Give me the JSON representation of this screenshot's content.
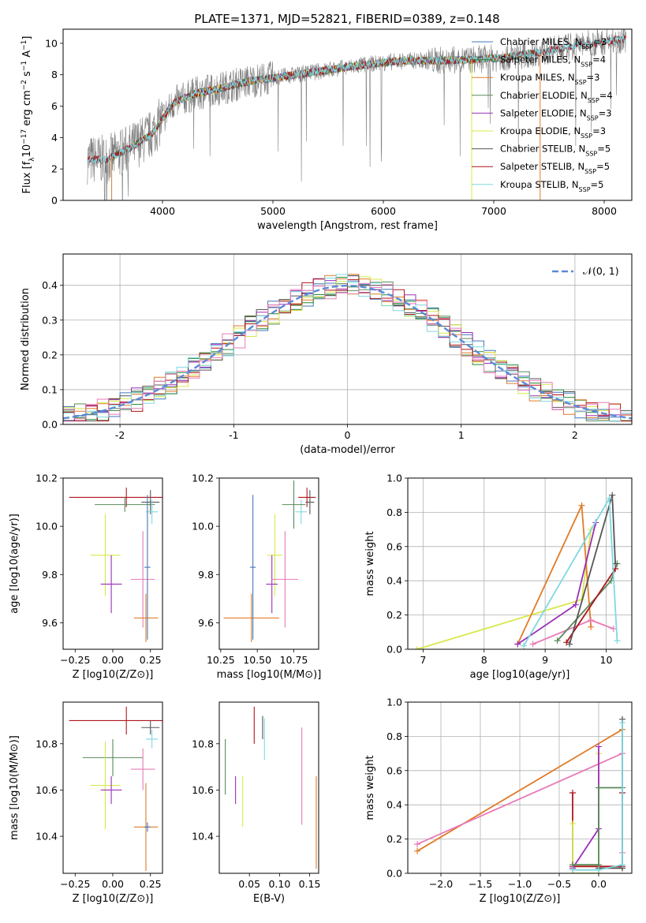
{
  "title": "PLATE=1371, MJD=52821, FIBERID=0389, z=0.148",
  "colors": {
    "chabrier_miles": "#4477bb",
    "salpeter_miles": "#228833",
    "kroupa_miles": "#e07b28",
    "chabrier_elodie": "#5a8a5a",
    "salpeter_elodie": "#9b30b8",
    "kroupa_elodie": "#d8e84a",
    "chabrier_stelib": "#555555",
    "salpeter_stelib": "#b0151b",
    "kroupa_stelib": "#7fd8e0",
    "kroupa_extra": "#e87ab8",
    "normal_curve": "#5a8ad8",
    "data": "#808080"
  },
  "chart_data": [
    {
      "id": "spectrum",
      "type": "line",
      "title": "PLATE=1371, MJD=52821, FIBERID=0389, z=0.148",
      "xlabel": "wavelength [Angstrom, rest frame]",
      "ylabel": "Flux [f_λ10^-17 erg cm^-2 s^-1 A^-1]",
      "xlim": [
        3100,
        8250
      ],
      "ylim": [
        0,
        10.9
      ],
      "xticks": [
        4000,
        5000,
        6000,
        7000,
        8000
      ],
      "yticks": [
        0,
        2,
        4,
        6,
        8,
        10
      ],
      "legend": [
        "Chabrier MILES, N_SSP=3",
        "Salpeter MILES, N_SSP=4",
        "Kroupa MILES, N_SSP=3",
        "Chabrier ELODIE, N_SSP=4",
        "Salpeter ELODIE, N_SSP=3",
        "Kroupa ELODIE, N_SSP=3",
        "Chabrier STELIB, N_SSP=5",
        "Salpeter STELIB, N_SSP=5",
        "Kroupa STELIB, N_SSP=5"
      ],
      "legend_placement": "top-right",
      "continuum": {
        "x": [
          3320,
          3500,
          3700,
          3900,
          4000,
          4100,
          4300,
          4500,
          4800,
          5000,
          5300,
          5600,
          5900,
          6200,
          6500,
          6800,
          7100,
          7400,
          7700,
          8000,
          8200
        ],
        "y": [
          2.6,
          2.6,
          3.3,
          4.2,
          5.2,
          6.2,
          6.8,
          7.1,
          7.6,
          7.8,
          8.1,
          8.4,
          8.7,
          8.9,
          8.9,
          8.95,
          9.1,
          9.4,
          9.8,
          10.1,
          10.3
        ]
      }
    },
    {
      "id": "residuals",
      "type": "line",
      "xlabel": "(data-model)/error",
      "ylabel": "Normed distribution",
      "xlim": [
        -2.5,
        2.5
      ],
      "ylim": [
        0,
        0.49
      ],
      "xticks": [
        -2,
        -1,
        0,
        1,
        2
      ],
      "yticks": [
        0.0,
        0.1,
        0.2,
        0.3,
        0.4
      ],
      "grid": true,
      "legend": [
        "𝒩(0, 1)"
      ],
      "legend_placement": "top-right"
    },
    {
      "id": "age_vs_Z",
      "type": "scatter",
      "xlabel": "Z [log10(Z/Z⊙)]",
      "ylabel": "age  [log10(age/yr)]",
      "xlim": [
        -0.33,
        0.33
      ],
      "ylim": [
        9.49,
        10.2
      ],
      "xticks": [
        -0.25,
        0.0,
        0.25
      ],
      "yticks": [
        9.6,
        9.8,
        10.0,
        10.2
      ],
      "points": [
        {
          "model": "salpeter_stelib",
          "x": 0.09,
          "y": 10.12,
          "xerr": 0.38,
          "yerr": 0.04
        },
        {
          "model": "chabrier_elodie",
          "x": 0.08,
          "y": 10.09,
          "xerr": 0.2,
          "yerr": 0.03
        },
        {
          "model": "chabrier_stelib",
          "x": 0.25,
          "y": 10.1,
          "xerr": 0.06,
          "yerr": 0.05
        },
        {
          "model": "kroupa_stelib",
          "x": 0.26,
          "y": 10.06,
          "xerr": 0.04,
          "yerr": 0.05
        },
        {
          "model": "kroupa_elodie",
          "x": -0.05,
          "y": 9.88,
          "xerr": 0.1,
          "yerr": 0.17
        },
        {
          "model": "salpeter_elodie",
          "x": -0.01,
          "y": 9.76,
          "xerr": 0.07,
          "yerr": 0.12
        },
        {
          "model": "kroupa_extra",
          "x": 0.2,
          "y": 9.78,
          "xerr": 0.08,
          "yerr": 0.2
        },
        {
          "model": "kroupa_miles",
          "x": 0.22,
          "y": 9.62,
          "xerr": 0.08,
          "yerr": 0.1
        },
        {
          "model": "chabrier_miles",
          "x": 0.23,
          "y": 9.83,
          "xerr": 0.02,
          "yerr": 0.3
        }
      ]
    },
    {
      "id": "age_vs_mass",
      "type": "scatter",
      "xlabel": "mass [log10(M/M⊙)]",
      "xlim": [
        10.24,
        10.92
      ],
      "ylim": [
        9.49,
        10.2
      ],
      "xticks": [
        10.25,
        10.5,
        10.75
      ],
      "yticks": [
        9.6,
        9.8,
        10.0,
        10.2
      ],
      "points": [
        {
          "model": "salpeter_stelib",
          "x": 10.84,
          "y": 10.12,
          "xerr": 0.06,
          "yerr": 0.04
        },
        {
          "model": "chabrier_stelib",
          "x": 10.86,
          "y": 10.1,
          "xerr": 0.03,
          "yerr": 0.05
        },
        {
          "model": "kroupa_stelib",
          "x": 10.8,
          "y": 10.06,
          "xerr": 0.04,
          "yerr": 0.05
        },
        {
          "model": "chabrier_elodie",
          "x": 10.75,
          "y": 10.09,
          "xerr": 0.08,
          "yerr": 0.1
        },
        {
          "model": "kroupa_elodie",
          "x": 10.62,
          "y": 9.88,
          "xerr": 0.05,
          "yerr": 0.17
        },
        {
          "model": "salpeter_elodie",
          "x": 10.6,
          "y": 9.76,
          "xerr": 0.04,
          "yerr": 0.12
        },
        {
          "model": "kroupa_extra",
          "x": 10.69,
          "y": 9.78,
          "xerr": 0.09,
          "yerr": 0.2
        },
        {
          "model": "kroupa_miles",
          "x": 10.46,
          "y": 9.62,
          "xerr": 0.19,
          "yerr": 0.1
        },
        {
          "model": "chabrier_miles",
          "x": 10.47,
          "y": 9.83,
          "xerr": 0.02,
          "yerr": 0.3
        }
      ]
    },
    {
      "id": "mass_weight_vs_age",
      "type": "line",
      "xlabel": "age  [log10(age/yr)]",
      "ylabel": "mass weight",
      "xlim": [
        6.75,
        10.42
      ],
      "ylim": [
        0,
        1.0
      ],
      "xticks": [
        7,
        8,
        9,
        10
      ],
      "yticks": [
        0.0,
        0.2,
        0.4,
        0.6,
        0.8,
        1.0
      ],
      "grid": true,
      "series": [
        {
          "model": "kroupa_elodie",
          "x": [
            6.9,
            9.6,
            9.75
          ],
          "y": [
            0.0,
            0.29,
            0.7
          ]
        },
        {
          "model": "kroupa_miles",
          "x": [
            8.55,
            9.6,
            9.75
          ],
          "y": [
            0.03,
            0.84,
            0.13
          ]
        },
        {
          "model": "salpeter_elodie",
          "x": [
            8.55,
            9.5,
            9.83
          ],
          "y": [
            0.03,
            0.26,
            0.74
          ]
        },
        {
          "model": "kroupa_extra",
          "x": [
            8.8,
            9.75,
            10.12
          ],
          "y": [
            0.03,
            0.17,
            0.12
          ]
        },
        {
          "model": "chabrier_elodie",
          "x": [
            9.2,
            10.08,
            10.18
          ],
          "y": [
            0.05,
            0.4,
            0.5
          ]
        },
        {
          "model": "salpeter_stelib",
          "x": [
            9.35,
            10.15
          ],
          "y": [
            0.04,
            0.47
          ]
        },
        {
          "model": "chabrier_stelib",
          "x": [
            9.4,
            10.1,
            10.15
          ],
          "y": [
            0.03,
            0.9,
            0.5
          ]
        },
        {
          "model": "kroupa_stelib",
          "x": [
            8.65,
            10.05,
            10.18
          ],
          "y": [
            0.02,
            0.88,
            0.05
          ]
        }
      ]
    },
    {
      "id": "mass_vs_Z",
      "type": "scatter",
      "xlabel": "Z [log10(Z/Z⊙)]",
      "ylabel": "mass [log10(M/M⊙)]",
      "xlim": [
        -0.33,
        0.33
      ],
      "ylim": [
        10.24,
        10.98
      ],
      "xticks": [
        -0.25,
        0.0,
        0.25
      ],
      "yticks": [
        10.4,
        10.6,
        10.8
      ],
      "points": [
        {
          "model": "salpeter_stelib",
          "x": 0.09,
          "y": 10.9,
          "xerr": 0.38,
          "yerr": 0.06
        },
        {
          "model": "chabrier_stelib",
          "x": 0.25,
          "y": 10.87,
          "xerr": 0.06,
          "yerr": 0.03
        },
        {
          "model": "kroupa_stelib",
          "x": 0.26,
          "y": 10.82,
          "xerr": 0.04,
          "yerr": 0.04
        },
        {
          "model": "chabrier_elodie",
          "x": 0.0,
          "y": 10.74,
          "xerr": 0.2,
          "yerr": 0.08
        },
        {
          "model": "kroupa_extra",
          "x": 0.2,
          "y": 10.69,
          "xerr": 0.08,
          "yerr": 0.09
        },
        {
          "model": "kroupa_elodie",
          "x": -0.05,
          "y": 10.62,
          "xerr": 0.1,
          "yerr": 0.19
        },
        {
          "model": "salpeter_elodie",
          "x": -0.01,
          "y": 10.6,
          "xerr": 0.07,
          "yerr": 0.06
        },
        {
          "model": "kroupa_miles",
          "x": 0.22,
          "y": 10.44,
          "xerr": 0.08,
          "yerr": 0.19
        },
        {
          "model": "chabrier_miles",
          "x": 0.23,
          "y": 10.44,
          "xerr": 0.02,
          "yerr": 0.02
        }
      ]
    },
    {
      "id": "mass_vs_ebv",
      "type": "scatter",
      "xlabel": "E(B-V)",
      "xlim": [
        0.0,
        0.165
      ],
      "ylim": [
        10.24,
        10.98
      ],
      "xticks": [
        0.05,
        0.1,
        0.15
      ],
      "yticks": [
        10.4,
        10.6,
        10.8
      ],
      "points": [
        {
          "model": "chabrier_elodie",
          "x": 0.01,
          "y": 10.7,
          "yerr": 0.12
        },
        {
          "model": "salpeter_elodie",
          "x": 0.027,
          "y": 10.6,
          "yerr": 0.06
        },
        {
          "model": "kroupa_elodie",
          "x": 0.039,
          "y": 10.55,
          "yerr": 0.11
        },
        {
          "model": "salpeter_stelib",
          "x": 0.058,
          "y": 10.88,
          "yerr": 0.08
        },
        {
          "model": "chabrier_stelib",
          "x": 0.072,
          "y": 10.87,
          "yerr": 0.05
        },
        {
          "model": "kroupa_stelib",
          "x": 0.075,
          "y": 10.82,
          "yerr": 0.09
        },
        {
          "model": "kroupa_extra",
          "x": 0.137,
          "y": 10.66,
          "yerr": 0.21
        },
        {
          "model": "kroupa_miles",
          "x": 0.161,
          "y": 10.46,
          "yerr": 0.2
        }
      ]
    },
    {
      "id": "mass_weight_vs_Z",
      "type": "line",
      "xlabel": "Z [log10(Z/Z⊙)]",
      "ylabel": "mass weight",
      "xlim": [
        -2.42,
        0.42
      ],
      "ylim": [
        0,
        1.0
      ],
      "xticks": [
        -2.0,
        -1.5,
        -1.0,
        -0.5,
        0.0
      ],
      "yticks": [
        0.0,
        0.2,
        0.4,
        0.6,
        0.8,
        1.0
      ],
      "grid": true,
      "series": [
        {
          "model": "kroupa_miles",
          "x": [
            -2.3,
            0.3,
            0.3
          ],
          "y": [
            0.13,
            0.84,
            0.03
          ]
        },
        {
          "model": "kroupa_extra",
          "x": [
            -2.3,
            0.3,
            0.3
          ],
          "y": [
            0.17,
            0.7,
            0.12
          ]
        },
        {
          "model": "salpeter_stelib",
          "x": [
            -0.33,
            -0.33,
            0.3,
            0.3
          ],
          "y": [
            0.47,
            0.04,
            0.04,
            0.47
          ]
        },
        {
          "model": "kroupa_elodie",
          "x": [
            -0.33,
            -0.33,
            0.0,
            0.0
          ],
          "y": [
            0.29,
            0.0,
            0.0,
            0.7
          ]
        },
        {
          "model": "salpeter_elodie",
          "x": [
            -0.33,
            0.0,
            0.0
          ],
          "y": [
            0.03,
            0.26,
            0.74
          ]
        },
        {
          "model": "chabrier_elodie",
          "x": [
            -0.33,
            0.0,
            0.0,
            0.3
          ],
          "y": [
            0.05,
            0.05,
            0.5,
            0.5
          ]
        },
        {
          "model": "chabrier_stelib",
          "x": [
            0.0,
            0.3,
            0.3
          ],
          "y": [
            0.03,
            0.03,
            0.9
          ]
        },
        {
          "model": "kroupa_stelib",
          "x": [
            -0.33,
            0.0,
            0.3,
            0.3
          ],
          "y": [
            0.02,
            0.02,
            0.05,
            0.88
          ]
        }
      ]
    }
  ]
}
